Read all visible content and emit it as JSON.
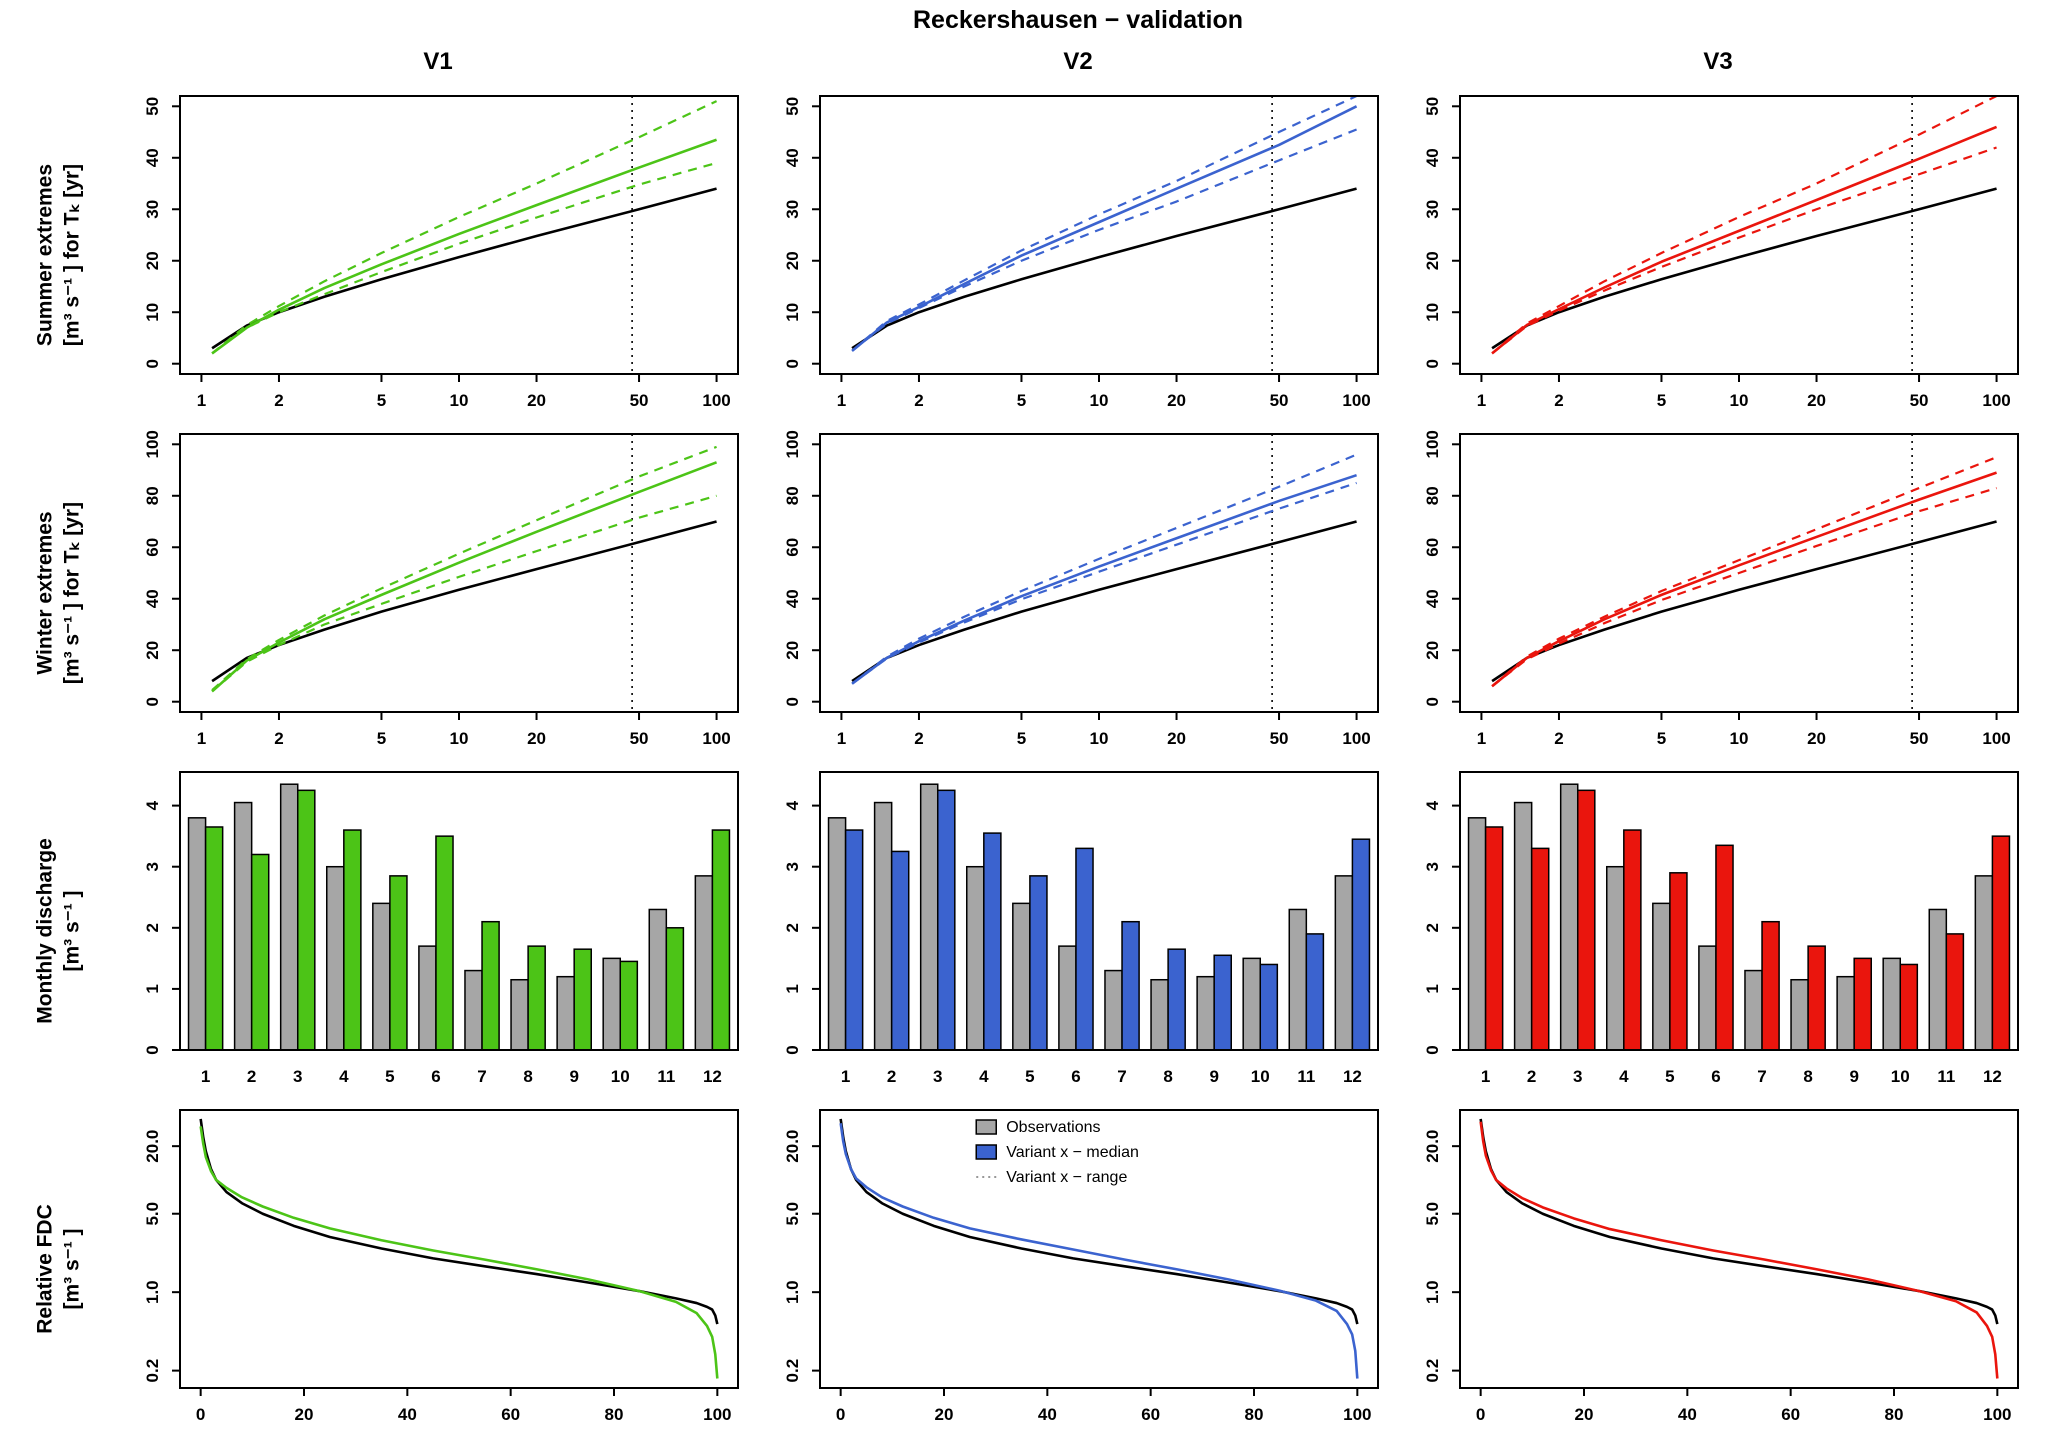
{
  "title": "Reckershausen − validation",
  "columns": [
    {
      "id": "V1",
      "label": "V1",
      "color": "#4cc417"
    },
    {
      "id": "V2",
      "label": "V2",
      "color": "#3b63cf"
    },
    {
      "id": "V3",
      "label": "V3",
      "color": "#ea150d"
    }
  ],
  "row_labels": [
    {
      "text": "Summer extremes\n[m³ s⁻¹ ] for Tₖ [yr]"
    },
    {
      "text": "Winter extremes\n[m³ s⁻¹ ] for Tₖ [yr]"
    },
    {
      "text": "Monthly discharge\n[m³ s⁻¹ ]"
    },
    {
      "text": "Relative FDC\n[m³ s⁻¹ ]"
    }
  ],
  "colors": {
    "observations": "#000000",
    "bar_fill": "#a6a6a6",
    "bar_edge": "#000000",
    "reference_line": "#000000"
  },
  "legend": {
    "items": [
      {
        "label": "Observations",
        "type": "box",
        "color": "#a6a6a6"
      },
      {
        "label": "Variant x − median",
        "type": "box",
        "color": "#3b63cf"
      },
      {
        "label": "Variant x − range",
        "type": "dotted",
        "color": "#777777"
      }
    ]
  },
  "chart_data": {
    "type": [
      "line",
      "line",
      "bar",
      "line"
    ],
    "extremes_T": [
      1.1,
      1.5,
      2,
      3,
      5,
      10,
      20,
      50,
      100
    ],
    "x_ticks": [
      "1",
      "2",
      "5",
      "10",
      "20",
      "50",
      "100"
    ],
    "reference_T": 47,
    "summer": {
      "ylim": [
        0,
        50
      ],
      "yticks": [
        0,
        10,
        20,
        30,
        40,
        50
      ],
      "observed": [
        3.0,
        7.4,
        10.0,
        13.0,
        16.4,
        20.7,
        24.8,
        30.0,
        34.0
      ],
      "variants": {
        "V1": {
          "median": [
            2.0,
            7.0,
            10.5,
            14.7,
            19.3,
            25.2,
            30.8,
            38.1,
            43.5
          ],
          "upper": [
            2.0,
            7.5,
            11.2,
            16.0,
            21.5,
            28.5,
            35.0,
            44.0,
            51.0
          ],
          "lower": [
            2.0,
            7.0,
            10.0,
            13.5,
            17.8,
            23.3,
            28.4,
            34.8,
            39.0
          ]
        },
        "V2": {
          "median": [
            2.5,
            8.0,
            11.0,
            15.5,
            21.0,
            27.5,
            34.0,
            42.5,
            50.0
          ],
          "upper": [
            2.5,
            8.3,
            11.5,
            16.2,
            22.0,
            29.0,
            35.5,
            45.0,
            52.0
          ],
          "lower": [
            2.5,
            7.8,
            10.8,
            15.0,
            20.0,
            26.0,
            31.5,
            39.5,
            45.5
          ]
        },
        "V3": {
          "median": [
            2.0,
            7.5,
            10.6,
            14.8,
            19.8,
            25.8,
            31.8,
            39.8,
            46.0
          ],
          "upper": [
            2.0,
            7.8,
            11.2,
            16.0,
            21.5,
            28.5,
            35.0,
            44.5,
            52.0
          ],
          "lower": [
            2.0,
            7.3,
            10.3,
            14.2,
            18.8,
            24.5,
            30.0,
            36.8,
            42.0
          ]
        }
      }
    },
    "winter": {
      "ylim": [
        0,
        100
      ],
      "yticks": [
        0,
        20,
        40,
        60,
        80,
        100
      ],
      "observed": [
        8.0,
        17.0,
        22.0,
        28.0,
        35.0,
        43.5,
        51.5,
        62.0,
        70.0
      ],
      "variants": {
        "V1": {
          "median": [
            4.0,
            16.0,
            23.0,
            32.0,
            41.5,
            54.0,
            66.0,
            81.5,
            93.0
          ],
          "upper": [
            4.5,
            16.5,
            24.0,
            33.5,
            44.0,
            57.5,
            70.5,
            87.5,
            99.0
          ],
          "lower": [
            4.0,
            15.5,
            22.0,
            30.0,
            38.0,
            48.5,
            58.5,
            71.5,
            80.0
          ]
        },
        "V2": {
          "median": [
            7.0,
            17.0,
            23.5,
            31.5,
            41.0,
            52.5,
            63.5,
            78.0,
            88.0
          ],
          "upper": [
            7.0,
            17.5,
            24.5,
            33.0,
            43.0,
            55.5,
            67.5,
            83.5,
            96.0
          ],
          "lower": [
            7.0,
            16.8,
            23.0,
            30.8,
            39.8,
            50.5,
            61.0,
            75.0,
            85.0
          ]
        },
        "V3": {
          "median": [
            6.0,
            17.0,
            23.5,
            32.0,
            41.5,
            53.0,
            64.0,
            78.5,
            89.0
          ],
          "upper": [
            6.0,
            17.5,
            24.5,
            33.0,
            43.0,
            55.0,
            67.0,
            83.0,
            95.0
          ],
          "lower": [
            6.0,
            16.5,
            22.5,
            30.5,
            39.5,
            50.0,
            60.5,
            74.0,
            83.0
          ]
        }
      }
    },
    "monthly": {
      "ylim": [
        0,
        4.55
      ],
      "yticks": [
        0,
        1,
        2,
        3,
        4
      ],
      "months": [
        "1",
        "2",
        "3",
        "4",
        "5",
        "6",
        "7",
        "8",
        "9",
        "10",
        "11",
        "12"
      ],
      "observed": [
        3.8,
        4.05,
        4.35,
        3.0,
        2.4,
        1.7,
        1.3,
        1.15,
        1.2,
        1.5,
        2.3,
        2.85
      ],
      "variants": {
        "V1": [
          3.65,
          3.2,
          4.25,
          3.6,
          2.85,
          3.5,
          2.1,
          1.7,
          1.65,
          1.45,
          2.0,
          3.6
        ],
        "V2": [
          3.6,
          3.25,
          4.25,
          3.55,
          2.85,
          3.3,
          2.1,
          1.65,
          1.55,
          1.4,
          1.9,
          3.45
        ],
        "V3": [
          3.65,
          3.3,
          4.25,
          3.6,
          2.9,
          3.35,
          2.1,
          1.7,
          1.5,
          1.4,
          1.9,
          3.5
        ]
      }
    },
    "fdc": {
      "ylim": [
        0.14,
        42
      ],
      "yticks": [
        0.2,
        1.0,
        5.0,
        20.0
      ],
      "ytick_labels": [
        "0.2",
        "1.0",
        "5.0",
        "20.0"
      ],
      "xticks": [
        0,
        20,
        40,
        60,
        80,
        100
      ],
      "x": [
        0,
        0.5,
        1,
        2,
        3,
        5,
        8,
        12,
        18,
        25,
        35,
        45,
        55,
        65,
        75,
        85,
        92,
        96,
        98,
        99,
        99.6,
        100
      ],
      "observed": [
        35,
        24,
        18,
        12.5,
        10,
        7.8,
        6.2,
        5.0,
        3.9,
        3.1,
        2.45,
        2.0,
        1.7,
        1.45,
        1.22,
        1.02,
        0.88,
        0.8,
        0.74,
        0.7,
        0.62,
        0.52
      ],
      "variants": {
        "V1": [
          30,
          21,
          16,
          12,
          10,
          8.5,
          7.0,
          5.8,
          4.6,
          3.7,
          2.9,
          2.35,
          1.95,
          1.6,
          1.3,
          1.02,
          0.82,
          0.65,
          0.5,
          0.4,
          0.28,
          0.17
        ],
        "V2": [
          32,
          22,
          17,
          12.5,
          10.3,
          8.6,
          7.0,
          5.8,
          4.6,
          3.7,
          2.95,
          2.4,
          1.95,
          1.6,
          1.3,
          1.03,
          0.84,
          0.68,
          0.52,
          0.42,
          0.3,
          0.17
        ],
        "V3": [
          33,
          22,
          16.5,
          12.2,
          10,
          8.4,
          6.9,
          5.7,
          4.55,
          3.65,
          2.9,
          2.35,
          1.95,
          1.6,
          1.3,
          1.02,
          0.83,
          0.66,
          0.5,
          0.4,
          0.28,
          0.17
        ]
      }
    }
  }
}
